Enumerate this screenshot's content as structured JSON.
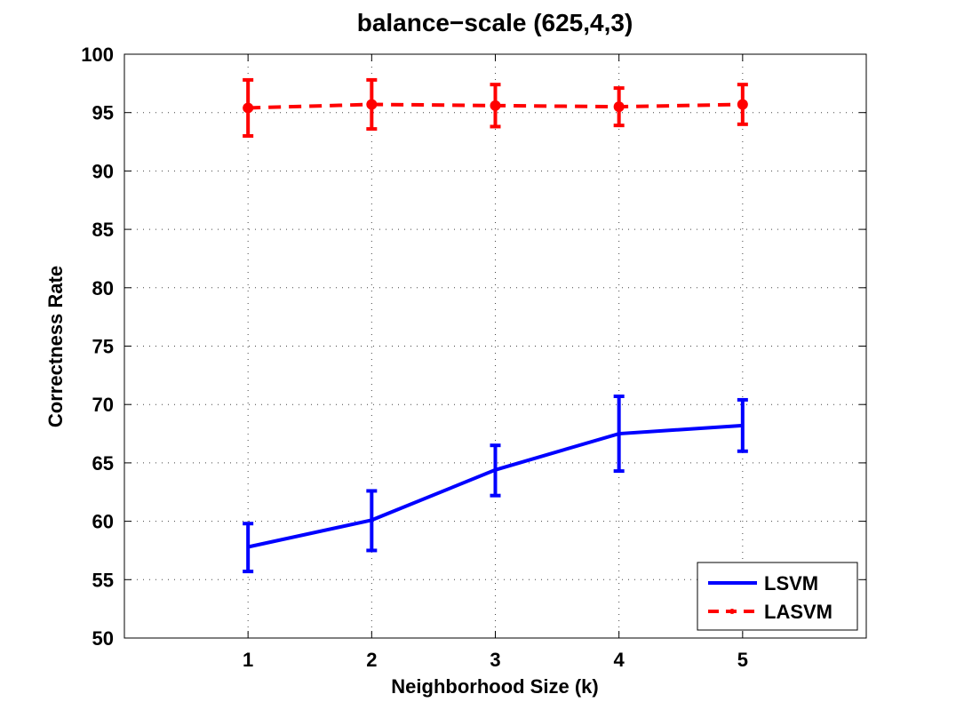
{
  "chart_data": {
    "type": "line",
    "title": "balance−scale (625,4,3)",
    "xlabel": "Neighborhood Size (k)",
    "ylabel": "Correctness Rate",
    "xlim": [
      0,
      6
    ],
    "ylim": [
      50,
      100
    ],
    "x": [
      1,
      2,
      3,
      4,
      5
    ],
    "xticks": [
      "1",
      "2",
      "3",
      "4",
      "5"
    ],
    "yticks": [
      "50",
      "55",
      "60",
      "65",
      "70",
      "75",
      "80",
      "85",
      "90",
      "95",
      "100"
    ],
    "grid": true,
    "legend_position": "bottom-right",
    "series": [
      {
        "name": "LSVM",
        "color": "#0000ff",
        "line_style": "solid",
        "marker": "none",
        "values": [
          57.8,
          60.1,
          64.4,
          67.5,
          68.2
        ],
        "error_low": [
          55.7,
          57.5,
          62.2,
          64.3,
          66.0
        ],
        "error_high": [
          59.8,
          62.6,
          66.5,
          70.7,
          70.4
        ]
      },
      {
        "name": "LASVM",
        "color": "#ff0000",
        "line_style": "dashed",
        "marker": "dot",
        "values": [
          95.4,
          95.7,
          95.6,
          95.5,
          95.7
        ],
        "error_low": [
          93.0,
          93.6,
          93.8,
          93.9,
          94.0
        ],
        "error_high": [
          97.8,
          97.8,
          97.4,
          97.1,
          97.4
        ]
      }
    ]
  }
}
